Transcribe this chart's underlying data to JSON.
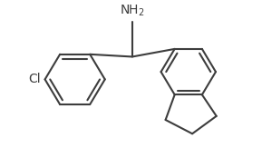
{
  "bg_color": "#ffffff",
  "line_color": "#3d3d3d",
  "line_width": 1.5,
  "text_color": "#3d3d3d",
  "nh2_label": "NH$_2$",
  "cl_label": "Cl",
  "nh2_fontsize": 10,
  "cl_fontsize": 10,
  "figsize": [
    2.89,
    1.74
  ],
  "dpi": 100,
  "xlim": [
    0,
    10
  ],
  "ylim": [
    0,
    6
  ]
}
